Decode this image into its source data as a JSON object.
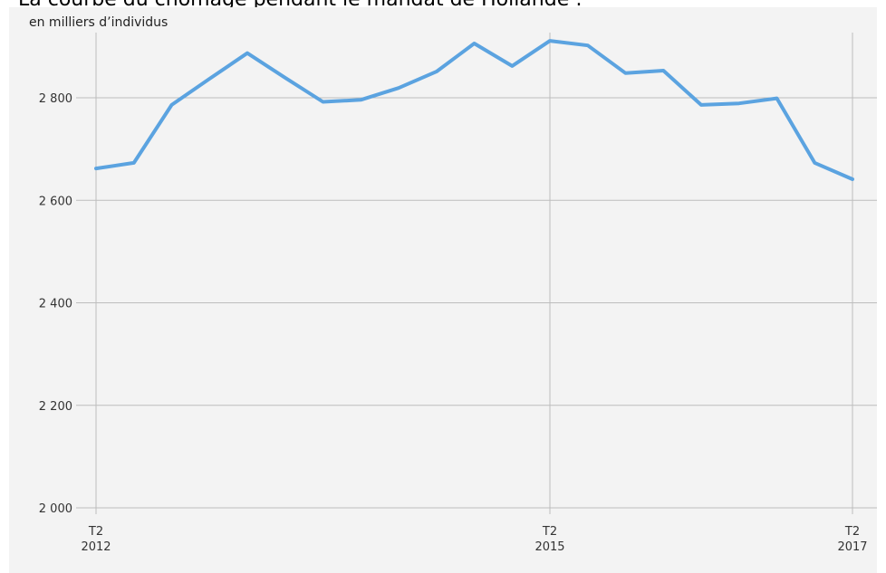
{
  "header": {
    "title": "La courbe du chômage pendant le mandat de Hollande :",
    "unit_label": "en milliers d’individus"
  },
  "chart_data": {
    "type": "line",
    "title": "La courbe du chômage pendant le mandat de Hollande :",
    "ylabel": "en milliers d’individus",
    "xlabel": "",
    "ylim": [
      2000,
      2910
    ],
    "yticks": [
      {
        "value": 2000,
        "label": "2 000"
      },
      {
        "value": 2200,
        "label": "2 200"
      },
      {
        "value": 2400,
        "label": "2 400"
      },
      {
        "value": 2600,
        "label": "2 600"
      },
      {
        "value": 2800,
        "label": "2 800"
      }
    ],
    "xticks": [
      {
        "index": 0,
        "quarter": "T2",
        "year": "2012"
      },
      {
        "index": 12,
        "quarter": "T2",
        "year": "2015"
      },
      {
        "index": 20,
        "quarter": "T2",
        "year": "2017"
      }
    ],
    "x": [
      "T2 2012",
      "T3 2012",
      "T4 2012",
      "T1 2013",
      "T2 2013",
      "T3 2013",
      "T4 2013",
      "T1 2014",
      "T2 2014",
      "T3 2014",
      "T4 2014",
      "T1 2015",
      "T2 2015",
      "T3 2015",
      "T4 2015",
      "T1 2016",
      "T2 2016",
      "T3 2016",
      "T4 2016",
      "T1 2017",
      "T2 2017"
    ],
    "series": [
      {
        "color": "#5ba3e0",
        "values": [
          2662,
          2673,
          2786,
          2837,
          2887,
          2839,
          2792,
          2796,
          2819,
          2851,
          2906,
          2862,
          2911,
          2902,
          2848,
          2853,
          2786,
          2789,
          2799,
          2673,
          2641
        ]
      }
    ],
    "grid": true,
    "legend": "none",
    "colors": {
      "line": "#5ba3e0",
      "grid": "#bdbdbd",
      "background": "#f3f3f3"
    }
  }
}
